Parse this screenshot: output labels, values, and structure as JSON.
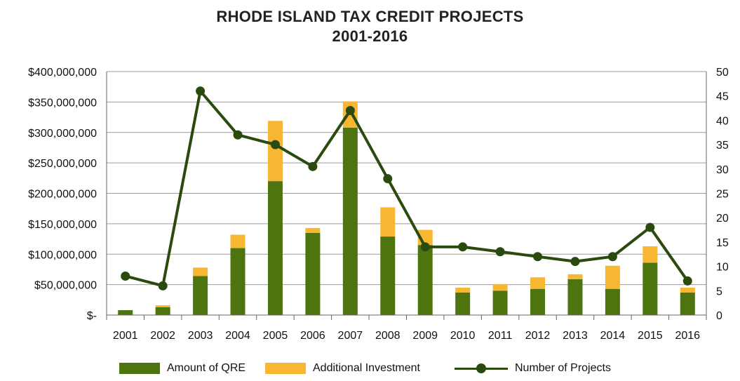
{
  "title_lines": [
    "RHODE ISLAND TAX CREDIT PROJECTS",
    "2001-2016"
  ],
  "colors": {
    "qre": "#4e740f",
    "additional": "#f7b733",
    "projects": "#2a4a0e",
    "grid": "#9a9a9a"
  },
  "chart_data": {
    "type": "bar",
    "stacked": true,
    "categories": [
      "2001",
      "2002",
      "2003",
      "2004",
      "2005",
      "2006",
      "2007",
      "2008",
      "2009",
      "2010",
      "2011",
      "2012",
      "2013",
      "2014",
      "2015",
      "2016"
    ],
    "series": [
      {
        "name": "Amount of QRE",
        "axis": "left",
        "type": "bar",
        "values": [
          8000000,
          13000000,
          64000000,
          110000000,
          220000000,
          135000000,
          308000000,
          129000000,
          115000000,
          37000000,
          40000000,
          43000000,
          59000000,
          43000000,
          86000000,
          37000000
        ]
      },
      {
        "name": "Additional Investment",
        "axis": "left",
        "type": "bar",
        "values": [
          0,
          3000000,
          14000000,
          22000000,
          99000000,
          8000000,
          43000000,
          48000000,
          25000000,
          8000000,
          11000000,
          19000000,
          8000000,
          38000000,
          27000000,
          8000000
        ]
      },
      {
        "name": "Number of Projects",
        "axis": "right",
        "type": "line",
        "values": [
          8,
          6,
          46,
          37,
          35,
          30.5,
          42,
          28,
          14,
          14,
          13,
          12,
          11,
          12,
          18,
          7
        ]
      }
    ],
    "y_left": {
      "min": 0,
      "max": 400000000,
      "step": 50000000,
      "tick_labels": [
        "$-",
        "$50,000,000",
        "$100,000,000",
        "$150,000,000",
        "$200,000,000",
        "$250,000,000",
        "$300,000,000",
        "$350,000,000",
        "$400,000,000"
      ]
    },
    "y_right": {
      "min": 0,
      "max": 50,
      "step": 5,
      "tick_labels": [
        "0",
        "5",
        "10",
        "15",
        "20",
        "25",
        "30",
        "35",
        "40",
        "45",
        "50"
      ]
    },
    "grid": true,
    "legend_position": "bottom"
  }
}
